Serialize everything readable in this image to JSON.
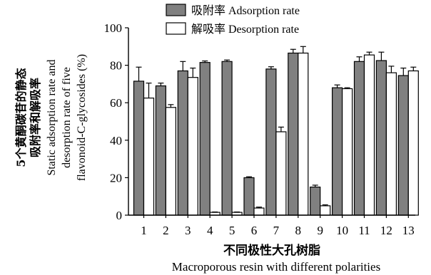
{
  "chart_data": {
    "type": "bar",
    "ylabel_lines": [
      "5个黄酮碳苷的静态",
      "吸附率和解吸率",
      "Static adsorption rate and",
      "desorption rate of five",
      "flavonoid-C-glycosides (%)"
    ],
    "xlabel_lines": [
      "不同极性大孔树脂",
      "Macroporous resin with different polarities"
    ],
    "categories": [
      "1",
      "2",
      "3",
      "4",
      "5",
      "6",
      "7",
      "8",
      "9",
      "10",
      "11",
      "12",
      "13"
    ],
    "ylim": [
      0,
      100
    ],
    "yticks": [
      0,
      20,
      40,
      60,
      80,
      100
    ],
    "legend_position": "top-center",
    "series": [
      {
        "name": "吸附率 Adsorption rate",
        "color": "#808080",
        "values": [
          71.5,
          69,
          77,
          81.5,
          82,
          20,
          78,
          86.5,
          15,
          68,
          82,
          82.5,
          74.5
        ],
        "errors": [
          7.5,
          1.5,
          5,
          0.8,
          0.8,
          0.5,
          1.2,
          2,
          1,
          1.5,
          2.5,
          4.5,
          4
        ]
      },
      {
        "name": "解吸率 Desorption rate",
        "color": "#ffffff",
        "values": [
          62.5,
          57.5,
          73.5,
          1.5,
          1.5,
          3.8,
          44.5,
          86.5,
          5,
          67.5,
          85.5,
          76,
          77
        ],
        "errors": [
          8,
          1.5,
          5,
          0.2,
          0.2,
          0.5,
          2.5,
          3.5,
          0.5,
          0.5,
          1.5,
          3.5,
          2
        ]
      }
    ]
  }
}
